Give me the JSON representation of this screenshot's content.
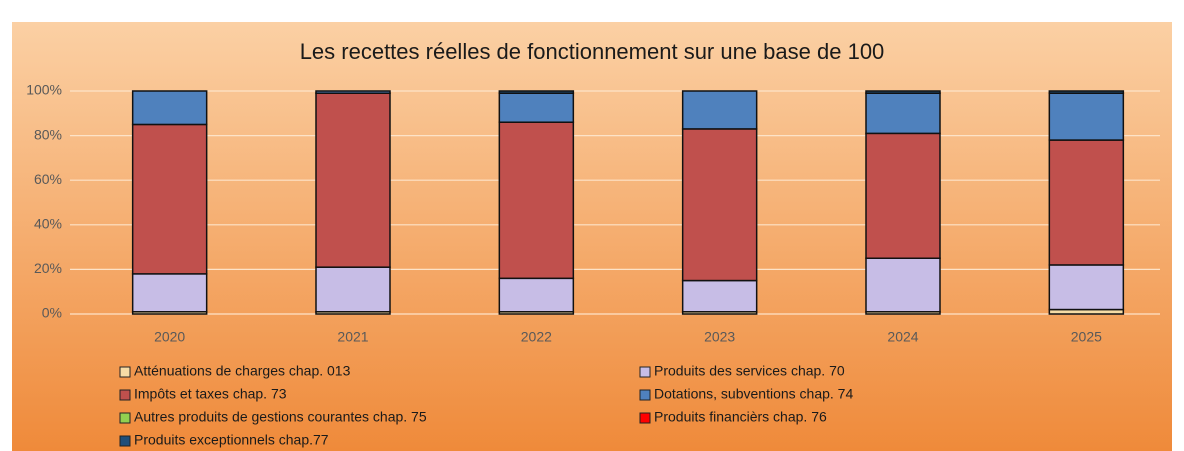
{
  "chart_data": {
    "type": "stacked_bar",
    "title": "Les recettes réelles de fonctionnement sur une base de 100",
    "categories": [
      "2020",
      "2021",
      "2022",
      "2023",
      "2024",
      "2025"
    ],
    "series": [
      {
        "name": "Atténuations de charges chap. 013",
        "color": "#f6dca6",
        "values": [
          1,
          1,
          1,
          1,
          1,
          2
        ]
      },
      {
        "name": "Produits des services chap. 70",
        "color": "#c7bde6",
        "values": [
          17,
          20,
          15,
          14,
          24,
          20
        ]
      },
      {
        "name": "Impôts et taxes chap. 73",
        "color": "#c0504d",
        "values": [
          67,
          78,
          70,
          68,
          56,
          56
        ]
      },
      {
        "name": "Dotations, subventions chap. 74",
        "color": "#4f81bd",
        "values": [
          15,
          1,
          13,
          17,
          18,
          21
        ]
      },
      {
        "name": "Autres produits de gestions courantes chap. 75",
        "color": "#92d050",
        "values": [
          0,
          0,
          0,
          0,
          0,
          0
        ]
      },
      {
        "name": "Produits financièrs chap. 76",
        "color": "#ff0000",
        "values": [
          0,
          0,
          0,
          0,
          0,
          0
        ]
      },
      {
        "name": "Produits exceptionnels chap.77",
        "color": "#1f4e79",
        "values": [
          0,
          0,
          1,
          0,
          1,
          1
        ]
      }
    ],
    "ylim": [
      0,
      100
    ],
    "yticks": [
      {
        "value": 0,
        "label": "0%"
      },
      {
        "value": 20,
        "label": "20%"
      },
      {
        "value": 40,
        "label": "40%"
      },
      {
        "value": 60,
        "label": "60%"
      },
      {
        "value": 80,
        "label": "80%"
      },
      {
        "value": 100,
        "label": "100%"
      }
    ],
    "grid": true
  }
}
